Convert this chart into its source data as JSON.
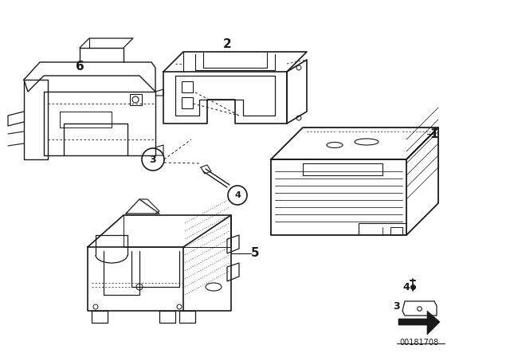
{
  "bg_color": "#ffffff",
  "line_color": "#1a1a1a",
  "part_number": "00181708",
  "figsize": [
    6.4,
    4.48
  ],
  "dpi": 100
}
